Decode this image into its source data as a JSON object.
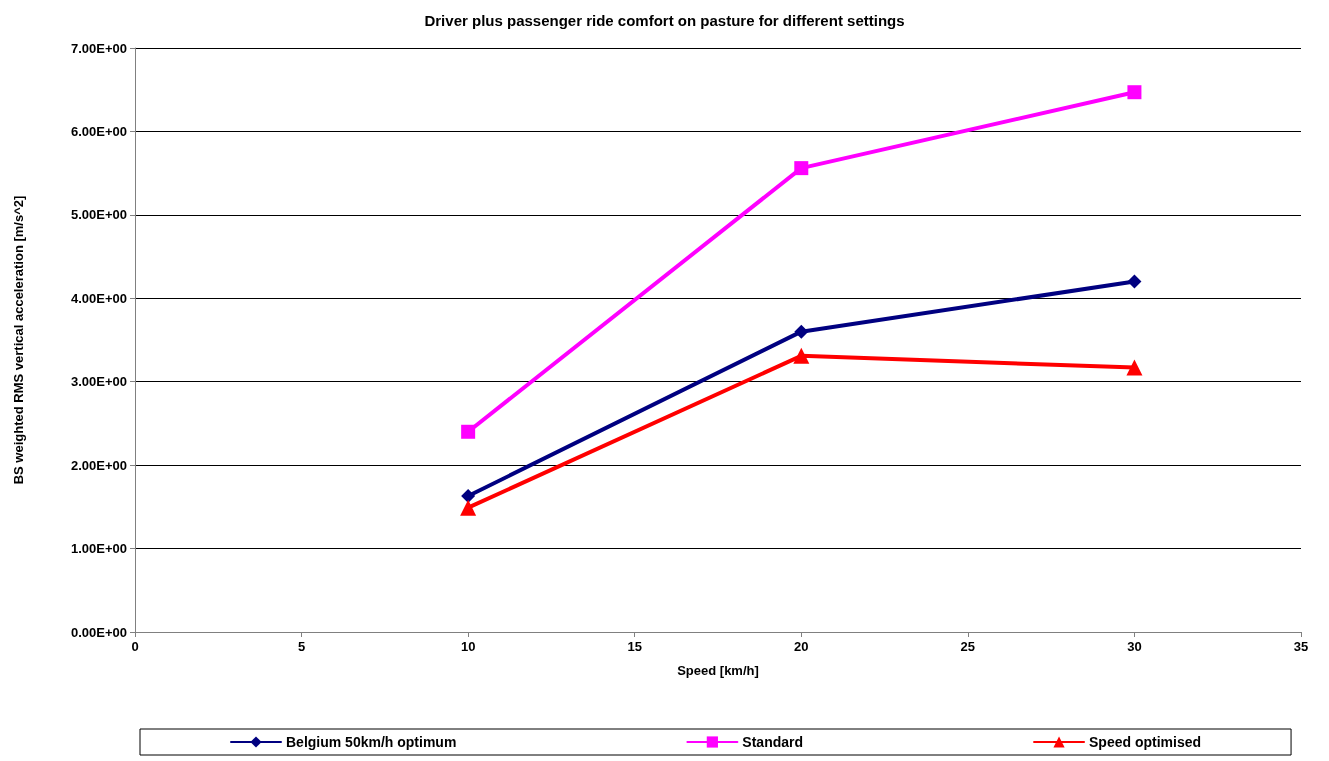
{
  "chart_data": {
    "type": "line",
    "title": "Driver plus passenger ride comfort on pasture for different settings",
    "xlabel": "Speed [km/h]",
    "ylabel": "BS weighted RMS vertical acceleration [m/s^2]",
    "x": [
      10,
      20,
      30
    ],
    "series": [
      {
        "name": "Belgium 50km/h optimum",
        "color": "#000080",
        "marker": "diamond",
        "values": [
          1.63,
          3.6,
          4.2
        ]
      },
      {
        "name": "Standard",
        "color": "#ff00ff",
        "marker": "square",
        "values": [
          2.4,
          5.56,
          6.47
        ]
      },
      {
        "name": "Speed optimised",
        "color": "#ff0000",
        "marker": "triangle",
        "values": [
          1.49,
          3.31,
          3.17
        ]
      }
    ],
    "xlim": [
      0,
      35
    ],
    "xticks": [
      0,
      5,
      10,
      15,
      20,
      25,
      30,
      35
    ],
    "ylim": [
      0,
      7
    ],
    "yticks": [
      {
        "value": 0,
        "label": "0.00E+00"
      },
      {
        "value": 1,
        "label": "1.00E+00"
      },
      {
        "value": 2,
        "label": "2.00E+00"
      },
      {
        "value": 3,
        "label": "3.00E+00"
      },
      {
        "value": 4,
        "label": "4.00E+00"
      },
      {
        "value": 5,
        "label": "5.00E+00"
      },
      {
        "value": 6,
        "label": "6.00E+00"
      },
      {
        "value": 7,
        "label": "7.00E+00"
      }
    ],
    "grid": "y",
    "legend": "bottom",
    "line_style": "solid"
  }
}
